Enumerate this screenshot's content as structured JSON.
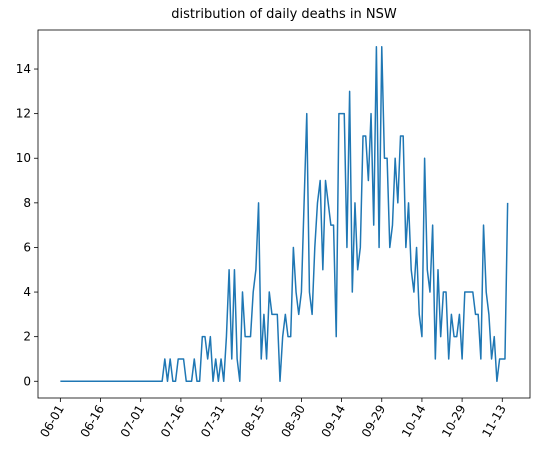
{
  "chart_data": {
    "type": "line",
    "title": "distribution of daily deaths in NSW",
    "categories": [
      "06-01",
      null,
      null,
      null,
      null,
      null,
      null,
      null,
      null,
      null,
      null,
      null,
      null,
      null,
      null,
      "06-16",
      null,
      null,
      null,
      null,
      null,
      null,
      null,
      null,
      null,
      null,
      null,
      null,
      null,
      null,
      "07-01",
      null,
      null,
      null,
      null,
      null,
      null,
      null,
      null,
      null,
      null,
      null,
      null,
      null,
      null,
      "07-16",
      null,
      null,
      null,
      null,
      null,
      null,
      null,
      null,
      null,
      null,
      null,
      null,
      null,
      null,
      "07-31",
      null,
      null,
      null,
      null,
      null,
      null,
      null,
      null,
      null,
      null,
      null,
      null,
      null,
      null,
      "08-15",
      null,
      null,
      null,
      null,
      null,
      null,
      null,
      null,
      null,
      null,
      null,
      null,
      null,
      null,
      "08-30",
      null,
      null,
      null,
      null,
      null,
      null,
      null,
      null,
      null,
      null,
      null,
      null,
      null,
      null,
      "09-14",
      null,
      null,
      null,
      null,
      null,
      null,
      null,
      null,
      null,
      null,
      null,
      null,
      null,
      null,
      "09-29",
      null,
      null,
      null,
      null,
      null,
      null,
      null,
      null,
      null,
      null,
      null,
      null,
      null,
      null,
      "10-14",
      null,
      null,
      null,
      null,
      null,
      null,
      null,
      null,
      null,
      null,
      null,
      null,
      null,
      null,
      "10-29",
      null,
      null,
      null,
      null,
      null,
      null,
      null,
      null,
      null,
      null,
      null,
      null,
      null,
      null,
      "11-13",
      null,
      null
    ],
    "series": [
      {
        "color": "#1f77b4",
        "values": [
          0,
          0,
          0,
          0,
          0,
          0,
          0,
          0,
          0,
          0,
          0,
          0,
          0,
          0,
          0,
          0,
          0,
          0,
          0,
          0,
          0,
          0,
          0,
          0,
          0,
          0,
          0,
          0,
          0,
          0,
          0,
          0,
          0,
          0,
          0,
          0,
          0,
          0,
          0,
          1,
          0,
          1,
          0,
          0,
          1,
          1,
          1,
          0,
          0,
          0,
          1,
          0,
          0,
          2,
          2,
          1,
          2,
          0,
          1,
          0,
          1,
          0,
          2,
          5,
          1,
          5,
          1,
          0,
          4,
          2,
          2,
          2,
          4,
          5,
          8,
          1,
          3,
          1,
          4,
          3,
          3,
          3,
          0,
          2,
          3,
          2,
          2,
          6,
          4,
          3,
          4,
          8,
          12,
          4,
          3,
          6,
          8,
          9,
          5,
          9,
          8,
          7,
          7,
          2,
          12,
          12,
          12,
          6,
          13,
          4,
          8,
          5,
          6,
          11,
          11,
          9,
          12,
          7,
          15,
          6,
          15,
          10,
          10,
          6,
          7,
          10,
          8,
          11,
          11,
          6,
          8,
          5,
          4,
          6,
          3,
          2,
          10,
          5,
          4,
          7,
          1,
          5,
          2,
          4,
          4,
          1,
          3,
          2,
          2,
          3,
          1,
          4,
          4,
          4,
          4,
          3,
          3,
          1,
          7,
          4,
          3,
          1,
          2,
          0,
          1,
          1,
          1,
          8
        ]
      }
    ],
    "ylim": [
      -0.75,
      15.75
    ],
    "yticks": [
      0,
      2,
      4,
      6,
      8,
      10,
      12,
      14
    ]
  }
}
